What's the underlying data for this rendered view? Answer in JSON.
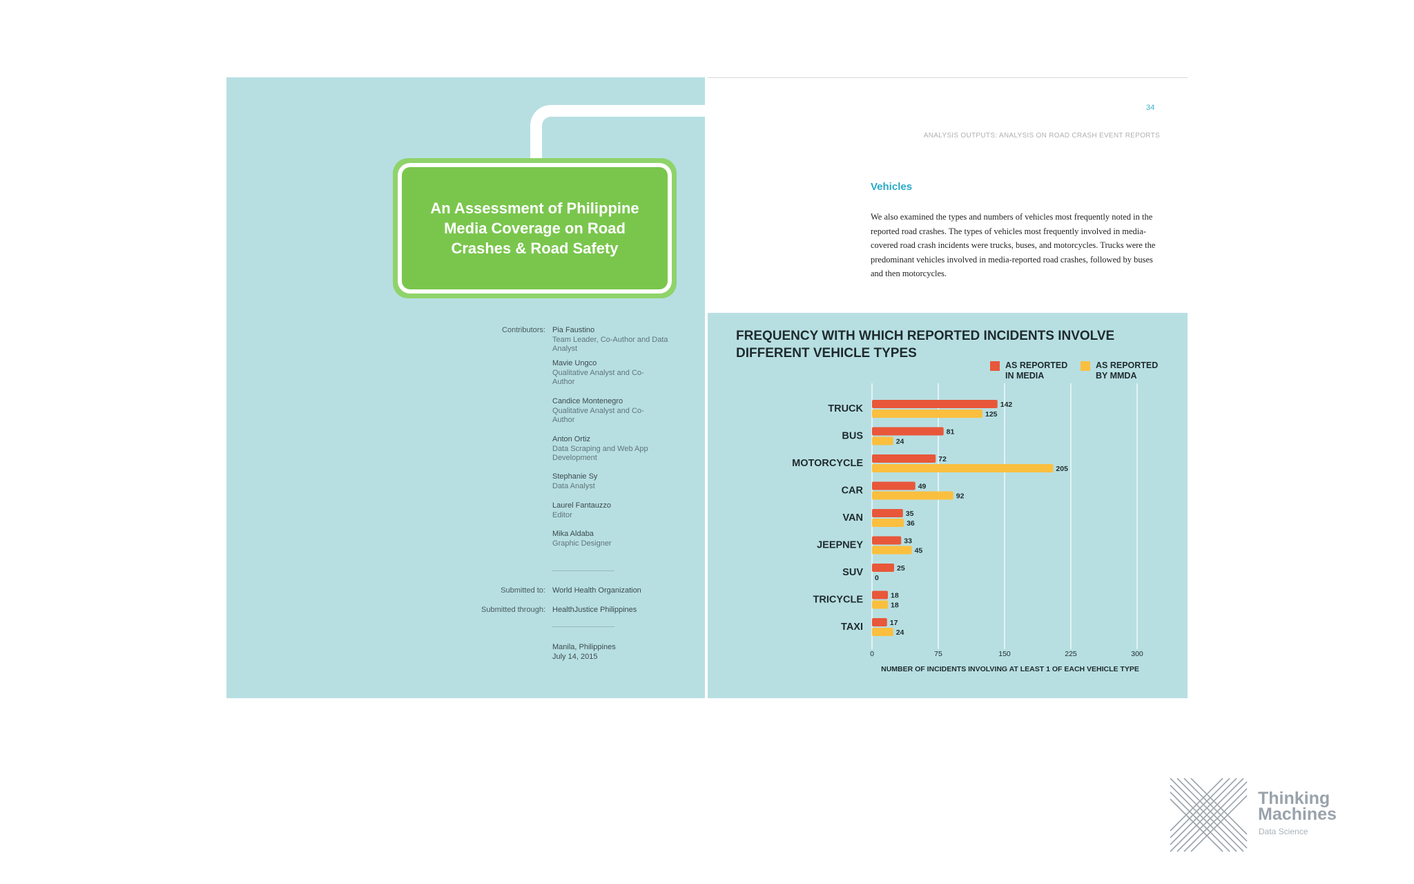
{
  "cover": {
    "title": "An Assessment of Philippine Media Coverage on Road Crashes & Road Safety",
    "contributors_label": "Contributors:",
    "contributors": [
      {
        "name": "Pia Faustino",
        "role": "Team Leader, Co-Author and Data Analyst"
      },
      {
        "name": "Mavie Ungco",
        "role": "Qualitative Analyst and Co-Author"
      },
      {
        "name": "Candice Montenegro",
        "role": "Qualitative Analyst and Co-Author"
      },
      {
        "name": "Anton Ortiz",
        "role": "Data Scraping and Web App Development"
      },
      {
        "name": "Stephanie Sy",
        "role": "Data Analyst"
      },
      {
        "name": "Laurel Fantauzzo",
        "role": "Editor"
      },
      {
        "name": "Mika Aldaba",
        "role": "Graphic Designer"
      }
    ],
    "submitted_to_label": "Submitted to:",
    "submitted_to": "World Health Organization",
    "submitted_through_label": "Submitted through:",
    "submitted_through": "HealthJustice Philippines",
    "place": "Manila, Philippines",
    "date": "July 14, 2015"
  },
  "report_page": {
    "page_number": "34",
    "running_head": "ANALYSIS OUTPUTS: ANALYSIS ON ROAD CRASH EVENT REPORTS",
    "section_title": "Vehicles",
    "body": "We also examined the types and numbers of vehicles most frequently noted in the reported road crashes. The types of vehicles most frequently involved in media-covered road crash incidents were trucks, buses, and motorcycles. Trucks were the predominant vehicles involved in media-reported road crashes, followed by buses and then motorcycles."
  },
  "chart_data": {
    "type": "bar",
    "orientation": "horizontal",
    "title": "FREQUENCY WITH WHICH REPORTED INCIDENTS INVOLVE DIFFERENT VEHICLE TYPES",
    "xlabel": "NUMBER OF INCIDENTS INVOLVING AT LEAST 1 OF EACH VEHICLE TYPE",
    "ylabel": "",
    "categories": [
      "TRUCK",
      "BUS",
      "MOTORCYCLE",
      "CAR",
      "VAN",
      "JEEPNEY",
      "SUV",
      "TRICYCLE",
      "TAXI"
    ],
    "series": [
      {
        "name": "AS REPORTED IN MEDIA",
        "color": "#e8573a",
        "values": [
          142,
          81,
          72,
          49,
          35,
          33,
          25,
          18,
          17
        ]
      },
      {
        "name": "AS REPORTED BY MMDA",
        "color": "#fbbf3f",
        "values": [
          125,
          24,
          205,
          92,
          36,
          45,
          0,
          18,
          24
        ]
      }
    ],
    "xlim": [
      0,
      300
    ],
    "xticks": [
      0,
      75,
      150,
      225,
      300
    ],
    "grid": true,
    "legend_position": "top-right"
  },
  "colors": {
    "panel_bg": "#b7dfe2",
    "title_green": "#7ac64d",
    "accent_blue": "#2aa9c6"
  },
  "logo": {
    "name_line1": "Thinking",
    "name_line2": "Machines",
    "tagline": "Data Science"
  }
}
